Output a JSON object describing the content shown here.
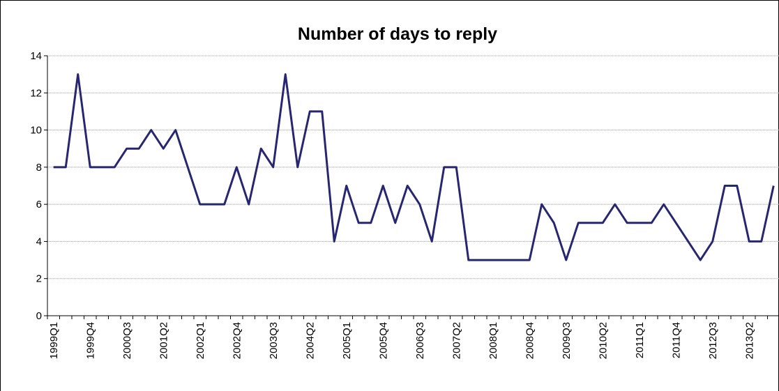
{
  "chart_data": {
    "type": "line",
    "title": "Number of days to reply",
    "categories": [
      "1999Q1",
      null,
      null,
      "1999Q4",
      null,
      null,
      "2000Q3",
      null,
      null,
      "2001Q2",
      null,
      null,
      "2002Q1",
      null,
      null,
      "2002Q4",
      null,
      null,
      "2003Q3",
      null,
      null,
      "2004Q2",
      null,
      null,
      "2005Q1",
      null,
      null,
      "2005Q4",
      null,
      null,
      "2006Q3",
      null,
      null,
      "2007Q2",
      null,
      null,
      "2008Q1",
      null,
      null,
      "2008Q4",
      null,
      null,
      "2009Q3",
      null,
      null,
      "2010Q2",
      null,
      null,
      "2011Q1",
      null,
      null,
      "2011Q4",
      null,
      null,
      "2012Q3",
      null,
      null,
      "2013Q2",
      null,
      null
    ],
    "values": [
      8,
      8,
      13,
      8,
      8,
      8,
      9,
      9,
      10,
      9,
      10,
      8,
      6,
      6,
      6,
      8,
      6,
      9,
      8,
      13,
      8,
      11,
      11,
      4,
      7,
      5,
      5,
      7,
      5,
      7,
      6,
      4,
      8,
      8,
      3,
      3,
      3,
      3,
      3,
      3,
      6,
      5,
      3,
      5,
      5,
      5,
      6,
      5,
      5,
      5,
      6,
      5,
      4,
      3,
      4,
      7,
      7,
      4,
      4,
      7
    ],
    "color": "#262673",
    "ylim": [
      0,
      14
    ],
    "yticks": [
      0,
      2,
      4,
      6,
      8,
      10,
      12,
      14
    ],
    "grid": true
  }
}
